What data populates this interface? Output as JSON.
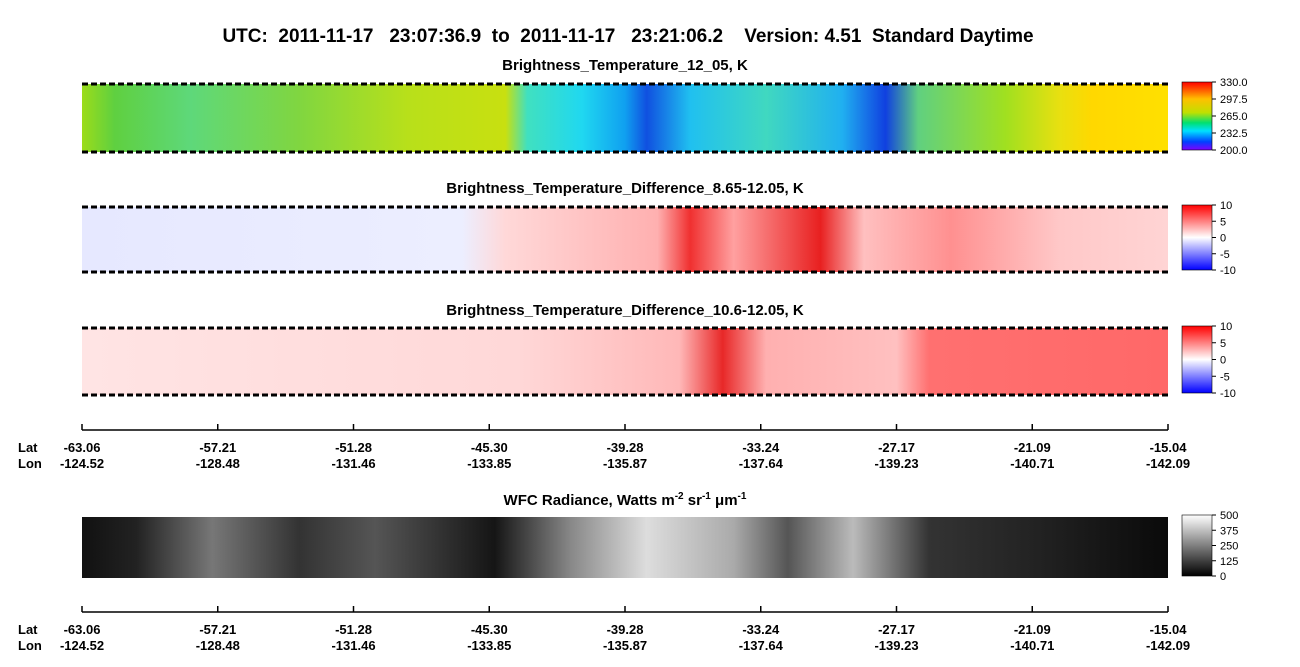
{
  "header": {
    "title": "UTC:  2011-11-17   23:07:36.9  to  2011-11-17   23:21:06.2    Version: 4.51  Standard Daytime"
  },
  "panels": [
    {
      "title": "Brightness_Temperature_12_05, K",
      "colorbar_ticks": [
        "330.0",
        "297.5",
        "265.0",
        "232.5",
        "200.0"
      ]
    },
    {
      "title": "Brightness_Temperature_Difference_8.65-12.05, K",
      "colorbar_ticks": [
        "10",
        "5",
        "0",
        "-5",
        "-10"
      ]
    },
    {
      "title": "Brightness_Temperature_Difference_10.6-12.05, K",
      "colorbar_ticks": [
        "10",
        "5",
        "0",
        "-5",
        "-10"
      ]
    },
    {
      "title_parts": [
        "WFC Radiance, Watts m",
        "-2",
        " sr",
        "-1",
        " μm",
        "-1"
      ],
      "colorbar_ticks": [
        "500",
        "375",
        "250",
        "125",
        "0"
      ]
    }
  ],
  "axes": [
    {
      "lat_label": "Lat",
      "lon_label": "Lon",
      "lat": [
        "-63.06",
        "-57.21",
        "-51.28",
        "-45.30",
        "-39.28",
        "-33.24",
        "-27.17",
        "-21.09",
        "-15.04"
      ],
      "lon": [
        "-124.52",
        "-128.48",
        "-131.46",
        "-133.85",
        "-135.87",
        "-137.64",
        "-139.23",
        "-140.71",
        "-142.09"
      ]
    },
    {
      "lat_label": "Lat",
      "lon_label": "Lon",
      "lat": [
        "-63.06",
        "-57.21",
        "-51.28",
        "-45.30",
        "-39.28",
        "-33.24",
        "-27.17",
        "-21.09",
        "-15.04"
      ],
      "lon": [
        "-124.52",
        "-128.48",
        "-131.46",
        "-133.85",
        "-135.87",
        "-137.64",
        "-139.23",
        "-140.71",
        "-142.09"
      ]
    }
  ]
}
